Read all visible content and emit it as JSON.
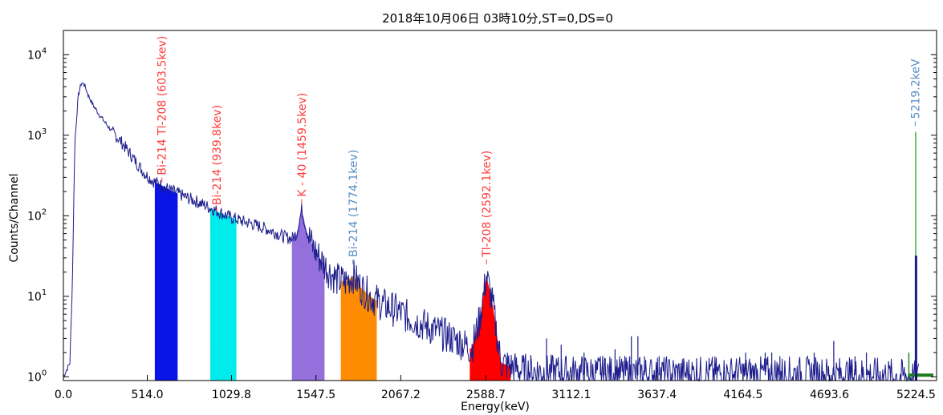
{
  "chart_data": {
    "type": "line",
    "title": "2018年10月06日 03時10分,ST=0,DS=0",
    "xlabel": "Energy(keV)",
    "ylabel": "Counts/Channel",
    "yscale": "log",
    "xlim": [
      0.0,
      5350.0
    ],
    "ylim": [
      0.9,
      20000
    ],
    "x_ticks": [
      0.0,
      514.0,
      1029.8,
      1547.5,
      2067.2,
      2588.7,
      3112.1,
      3637.4,
      4164.5,
      4693.6,
      5224.5
    ],
    "y_ticks": [
      {
        "base": "10",
        "exp": "0",
        "value": 1
      },
      {
        "base": "10",
        "exp": "1",
        "value": 10
      },
      {
        "base": "10",
        "exp": "2",
        "value": 100
      },
      {
        "base": "10",
        "exp": "3",
        "value": 1000
      },
      {
        "base": "10",
        "exp": "4",
        "value": 10000
      }
    ],
    "grid": false,
    "spectrum_color": "#1c1c8c",
    "spectrum": [
      [
        0,
        1
      ],
      [
        40,
        1.5
      ],
      [
        55,
        15
      ],
      [
        70,
        800
      ],
      [
        90,
        3000
      ],
      [
        110,
        4500
      ],
      [
        130,
        4200
      ],
      [
        150,
        3200
      ],
      [
        180,
        2400
      ],
      [
        220,
        1800
      ],
      [
        260,
        1400
      ],
      [
        300,
        1100
      ],
      [
        350,
        850
      ],
      [
        400,
        620
      ],
      [
        450,
        450
      ],
      [
        500,
        330
      ],
      [
        550,
        270
      ],
      [
        600,
        240
      ],
      [
        650,
        210
      ],
      [
        700,
        190
      ],
      [
        750,
        170
      ],
      [
        800,
        155
      ],
      [
        850,
        140
      ],
      [
        900,
        125
      ],
      [
        950,
        112
      ],
      [
        1000,
        100
      ],
      [
        1050,
        92
      ],
      [
        1100,
        85
      ],
      [
        1150,
        80
      ],
      [
        1200,
        74
      ],
      [
        1250,
        68
      ],
      [
        1300,
        62
      ],
      [
        1350,
        55
      ],
      [
        1400,
        52
      ],
      [
        1430,
        60
      ],
      [
        1460,
        120
      ],
      [
        1490,
        65
      ],
      [
        1530,
        40
      ],
      [
        1580,
        28
      ],
      [
        1630,
        20
      ],
      [
        1680,
        16
      ],
      [
        1730,
        15
      ],
      [
        1774,
        18
      ],
      [
        1820,
        13
      ],
      [
        1880,
        10
      ],
      [
        1950,
        8
      ],
      [
        2050,
        6.5
      ],
      [
        2150,
        5
      ],
      [
        2250,
        4
      ],
      [
        2350,
        3.2
      ],
      [
        2450,
        2.6
      ],
      [
        2500,
        2.2
      ],
      [
        2550,
        5
      ],
      [
        2592,
        18
      ],
      [
        2630,
        8
      ],
      [
        2680,
        1.5
      ],
      [
        2800,
        1.2
      ],
      [
        3000,
        1.15
      ],
      [
        3500,
        1.1
      ],
      [
        4000,
        1.1
      ],
      [
        4500,
        1.1
      ],
      [
        5000,
        1.05
      ],
      [
        5180,
        1.0
      ],
      [
        5240,
        1.0
      ]
    ],
    "regions": [
      {
        "color": "#0a14e6",
        "x0": 560,
        "x1": 700,
        "peak": 220
      },
      {
        "color": "#00ecec",
        "x0": 900,
        "x1": 1060,
        "peak": 90
      },
      {
        "color": "#9370db",
        "x0": 1400,
        "x1": 1600,
        "peak": 125
      },
      {
        "color": "#ff8c00",
        "x0": 1700,
        "x1": 1920,
        "peak": 18
      },
      {
        "color": "#ff0000",
        "x0": 2490,
        "x1": 2740,
        "peak": 18
      }
    ],
    "annotations": [
      {
        "label": "Bi-214 Tl-208 (603.5kev)",
        "x": 603.5,
        "y": 260,
        "color": "#ff3c3c"
      },
      {
        "label": "Bi-214 (939.8kev)",
        "x": 939.8,
        "y": 110,
        "color": "#ff3c3c"
      },
      {
        "label": "K - 40 (1459.5kev)",
        "x": 1459.5,
        "y": 140,
        "color": "#ff3c3c"
      },
      {
        "label": "Bi-214 (1774.1kev)",
        "x": 1774.1,
        "y": 25,
        "color": "#5b8fc8"
      },
      {
        "label": "Tl-208 (2592.1kev)",
        "x": 2592.1,
        "y": 25,
        "color": "#ff3c3c"
      },
      {
        "label": "5219.2keV",
        "x": 5219.2,
        "y": 1300,
        "color": "#5b8fc8"
      }
    ],
    "spikes": [
      {
        "x": 2960,
        "y": 3
      },
      {
        "x": 3050,
        "y": 2.5
      },
      {
        "x": 3190,
        "y": 2
      },
      {
        "x": 3290,
        "y": 1.8
      },
      {
        "x": 3320,
        "y": 1.7
      },
      {
        "x": 3380,
        "y": 2.2
      },
      {
        "x": 3470,
        "y": 1.8
      },
      {
        "x": 3480,
        "y": 3.2
      },
      {
        "x": 3520,
        "y": 3.2
      },
      {
        "x": 3560,
        "y": 1.8
      },
      {
        "x": 3650,
        "y": 1.8
      },
      {
        "x": 3880,
        "y": 1.7
      },
      {
        "x": 4180,
        "y": 2
      },
      {
        "x": 4300,
        "y": 2
      },
      {
        "x": 4340,
        "y": 2
      },
      {
        "x": 4390,
        "y": 1.8
      },
      {
        "x": 4600,
        "y": 2
      },
      {
        "x": 4720,
        "y": 2.8
      },
      {
        "x": 4850,
        "y": 1.8
      },
      {
        "x": 4920,
        "y": 2
      }
    ],
    "end_peaks": [
      {
        "x": 5180,
        "y": 2,
        "color": "#228b22"
      },
      {
        "x": 5222,
        "y": 1100,
        "color": "#3cb43c"
      },
      {
        "x": 5224,
        "y": 32,
        "color": "#1c1c8c"
      }
    ],
    "baseline_bar": {
      "x0": 5175,
      "x1": 5330,
      "color": "#1e7a1e"
    }
  }
}
